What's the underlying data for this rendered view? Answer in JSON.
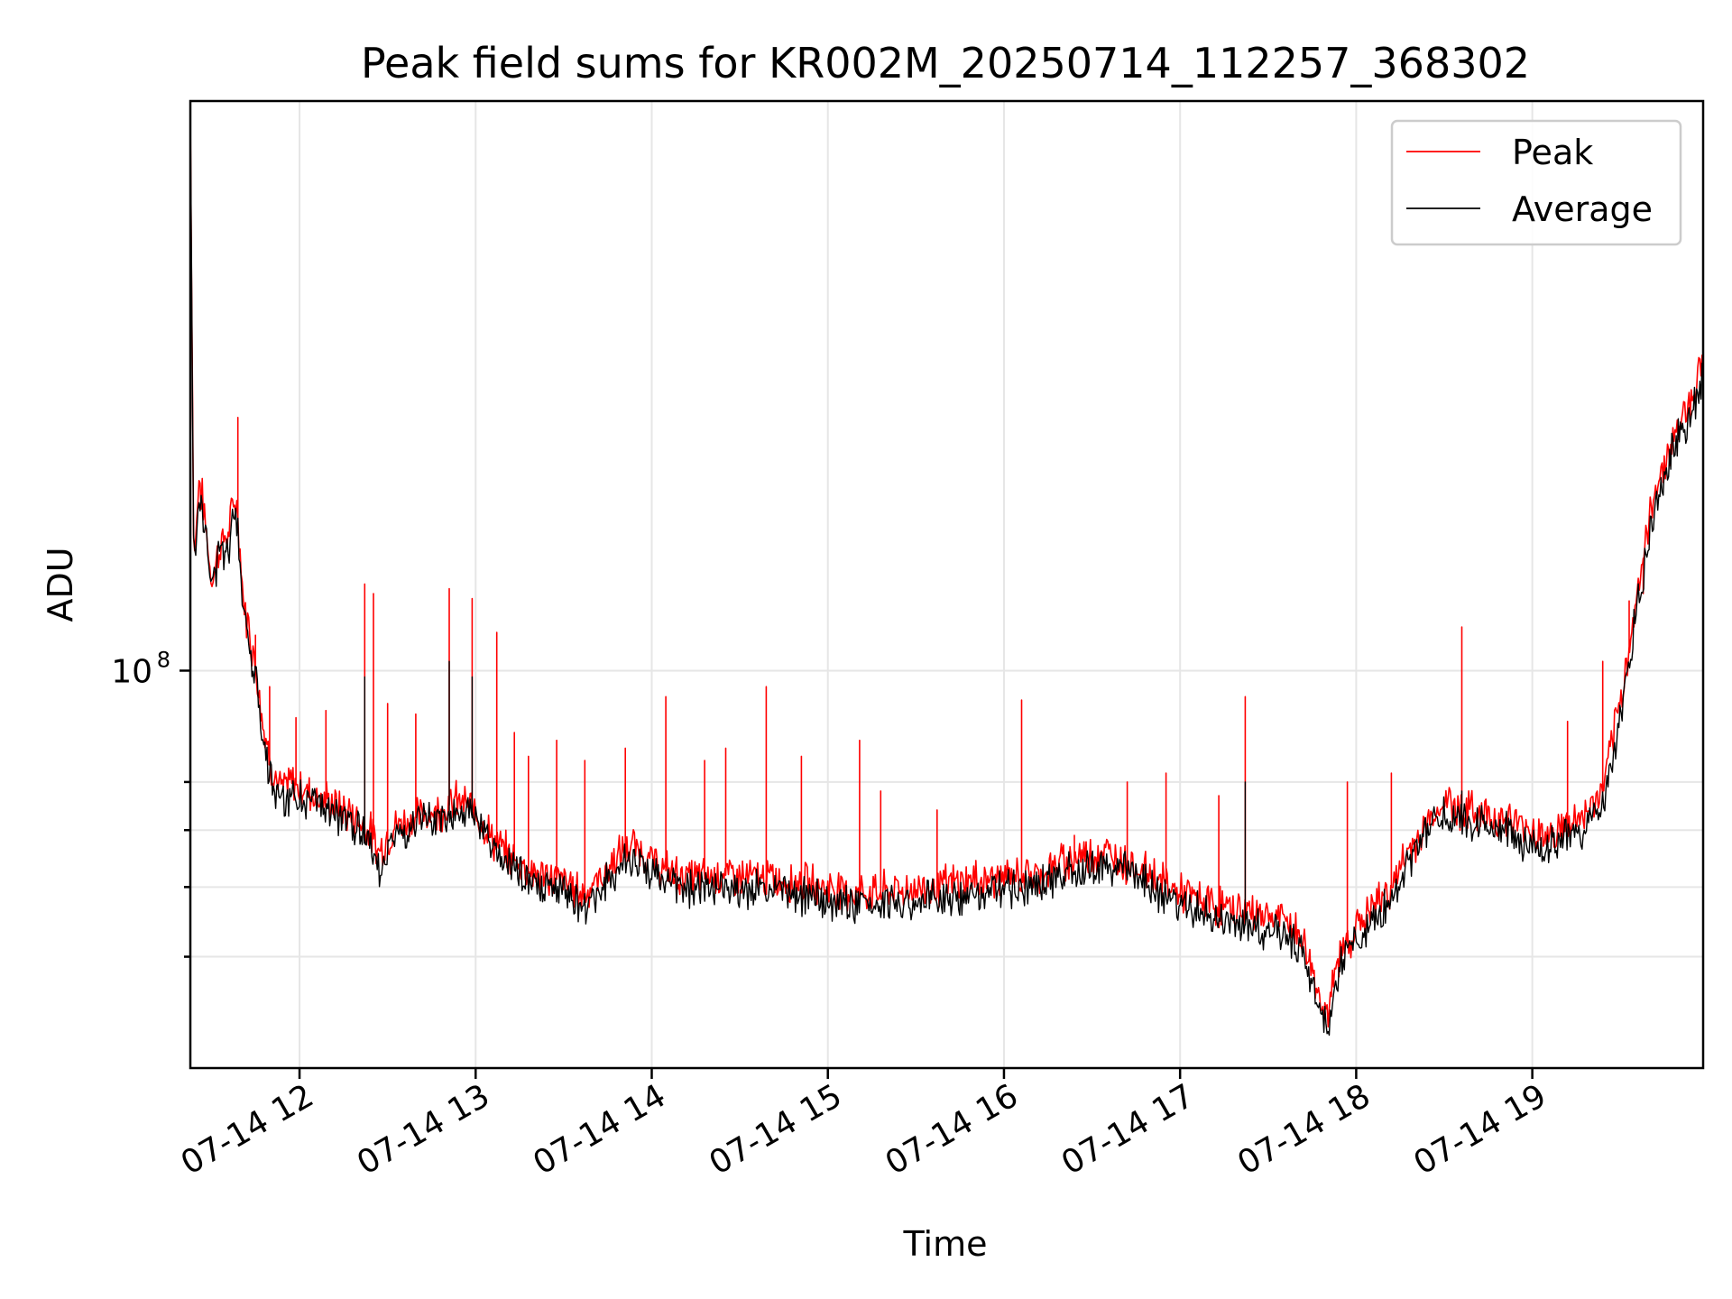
{
  "chart_data": {
    "type": "line",
    "title": "Peak field sums for KR002M_20250714_112257_368302",
    "xlabel": "Time",
    "ylabel": "ADU",
    "x_type": "time",
    "x_range_hours": [
      11.38,
      19.97
    ],
    "x_ticks": [
      {
        "hour": 12,
        "label": "07-14 12"
      },
      {
        "hour": 13,
        "label": "07-14 13"
      },
      {
        "hour": 14,
        "label": "07-14 14"
      },
      {
        "hour": 15,
        "label": "07-14 15"
      },
      {
        "hour": 16,
        "label": "07-14 16"
      },
      {
        "hour": 17,
        "label": "07-14 17"
      },
      {
        "hour": 18,
        "label": "07-14 18"
      },
      {
        "hour": 19,
        "label": "07-14 19"
      }
    ],
    "y_scale": "log",
    "ylim": [
      28000000,
      620000000
    ],
    "y_major_ticks": [
      {
        "value": 100000000,
        "base": "10",
        "exp": "8"
      }
    ],
    "y_minor_ticks": [
      40000000,
      50000000,
      60000000,
      70000000
    ],
    "grid": true,
    "legend": "top-right",
    "series": [
      {
        "name": "Peak",
        "color": "#ff0000",
        "points": [
          [
            11.38,
            600000000
          ],
          [
            11.4,
            140000000
          ],
          [
            11.43,
            185000000
          ],
          [
            11.46,
            165000000
          ],
          [
            11.5,
            133000000
          ],
          [
            11.55,
            150000000
          ],
          [
            11.6,
            155000000
          ],
          [
            11.63,
            175000000
          ],
          [
            11.65,
            164000000
          ],
          [
            11.68,
            125000000
          ],
          [
            11.72,
            112000000
          ],
          [
            11.76,
            98000000
          ],
          [
            11.8,
            82000000
          ],
          [
            11.85,
            72000000
          ],
          [
            11.9,
            68000000
          ],
          [
            11.95,
            70000000
          ],
          [
            12.05,
            68000000
          ],
          [
            12.2,
            65000000
          ],
          [
            12.3,
            63000000
          ],
          [
            12.4,
            60000000
          ],
          [
            12.45,
            56000000
          ],
          [
            12.55,
            61000000
          ],
          [
            12.7,
            63000000
          ],
          [
            12.8,
            64000000
          ],
          [
            12.9,
            66000000
          ],
          [
            13.0,
            64000000
          ],
          [
            13.1,
            58000000
          ],
          [
            13.2,
            55000000
          ],
          [
            13.35,
            52000000
          ],
          [
            13.5,
            51000000
          ],
          [
            13.6,
            49000000
          ],
          [
            13.7,
            51000000
          ],
          [
            13.8,
            55000000
          ],
          [
            13.9,
            57000000
          ],
          [
            14.05,
            53000000
          ],
          [
            14.2,
            51500000
          ],
          [
            14.4,
            52000000
          ],
          [
            14.6,
            51500000
          ],
          [
            14.8,
            51000000
          ],
          [
            15.0,
            50000000
          ],
          [
            15.2,
            49000000
          ],
          [
            15.4,
            49500000
          ],
          [
            15.6,
            50000000
          ],
          [
            15.8,
            51000000
          ],
          [
            16.0,
            51500000
          ],
          [
            16.2,
            52000000
          ],
          [
            16.4,
            55000000
          ],
          [
            16.55,
            56000000
          ],
          [
            16.7,
            54000000
          ],
          [
            16.85,
            52000000
          ],
          [
            17.0,
            49000000
          ],
          [
            17.15,
            47500000
          ],
          [
            17.3,
            46500000
          ],
          [
            17.45,
            46000000
          ],
          [
            17.6,
            45000000
          ],
          [
            17.7,
            42000000
          ],
          [
            17.78,
            36000000
          ],
          [
            17.84,
            33000000
          ],
          [
            17.9,
            40000000
          ],
          [
            18.0,
            44000000
          ],
          [
            18.1,
            47000000
          ],
          [
            18.2,
            50000000
          ],
          [
            18.3,
            56000000
          ],
          [
            18.4,
            61000000
          ],
          [
            18.5,
            66000000
          ],
          [
            18.6,
            64000000
          ],
          [
            18.7,
            63500000
          ],
          [
            18.85,
            62000000
          ],
          [
            19.0,
            60000000
          ],
          [
            19.1,
            59000000
          ],
          [
            19.2,
            61000000
          ],
          [
            19.3,
            63000000
          ],
          [
            19.4,
            68000000
          ],
          [
            19.5,
            90000000
          ],
          [
            19.6,
            130000000
          ],
          [
            19.7,
            180000000
          ],
          [
            19.8,
            210000000
          ],
          [
            19.9,
            240000000
          ],
          [
            19.97,
            270000000
          ]
        ],
        "spikes": [
          [
            11.65,
            225000000
          ],
          [
            11.75,
            112000000
          ],
          [
            11.83,
            95000000
          ],
          [
            11.98,
            86000000
          ],
          [
            12.15,
            88000000
          ],
          [
            12.37,
            132000000
          ],
          [
            12.42,
            128000000
          ],
          [
            12.5,
            90000000
          ],
          [
            12.66,
            87000000
          ],
          [
            12.85,
            130000000
          ],
          [
            12.98,
            126000000
          ],
          [
            13.12,
            113000000
          ],
          [
            13.22,
            82000000
          ],
          [
            13.3,
            76000000
          ],
          [
            13.46,
            80000000
          ],
          [
            13.62,
            75000000
          ],
          [
            13.85,
            78000000
          ],
          [
            14.08,
            92000000
          ],
          [
            14.3,
            75000000
          ],
          [
            14.42,
            78000000
          ],
          [
            14.65,
            95000000
          ],
          [
            14.85,
            76000000
          ],
          [
            15.18,
            80000000
          ],
          [
            15.3,
            68000000
          ],
          [
            15.62,
            64000000
          ],
          [
            16.1,
            91000000
          ],
          [
            16.4,
            59000000
          ],
          [
            16.7,
            70000000
          ],
          [
            16.92,
            72000000
          ],
          [
            17.22,
            67000000
          ],
          [
            17.37,
            92000000
          ],
          [
            17.95,
            70000000
          ],
          [
            18.2,
            72000000
          ],
          [
            18.6,
            115000000
          ],
          [
            19.2,
            85000000
          ],
          [
            19.4,
            103000000
          ],
          [
            19.55,
            125000000
          ],
          [
            19.63,
            128000000
          ]
        ]
      },
      {
        "name": "Average",
        "color": "#000000",
        "points": [
          [
            11.38,
            600000000
          ],
          [
            11.4,
            135000000
          ],
          [
            11.43,
            180000000
          ],
          [
            11.46,
            160000000
          ],
          [
            11.5,
            130000000
          ],
          [
            11.55,
            145000000
          ],
          [
            11.6,
            150000000
          ],
          [
            11.63,
            170000000
          ],
          [
            11.65,
            160000000
          ],
          [
            11.68,
            122000000
          ],
          [
            11.72,
            108000000
          ],
          [
            11.76,
            95000000
          ],
          [
            11.8,
            79000000
          ],
          [
            11.85,
            69000000
          ],
          [
            11.9,
            65000000
          ],
          [
            11.95,
            67000000
          ],
          [
            12.05,
            66000000
          ],
          [
            12.2,
            62500000
          ],
          [
            12.3,
            61000000
          ],
          [
            12.4,
            58000000
          ],
          [
            12.45,
            53500000
          ],
          [
            12.55,
            59000000
          ],
          [
            12.7,
            61000000
          ],
          [
            12.8,
            62000000
          ],
          [
            12.9,
            64000000
          ],
          [
            13.0,
            62000000
          ],
          [
            13.1,
            56000000
          ],
          [
            13.2,
            53000000
          ],
          [
            13.35,
            50000000
          ],
          [
            13.5,
            49000000
          ],
          [
            13.6,
            47000000
          ],
          [
            13.7,
            49000000
          ],
          [
            13.8,
            53000000
          ],
          [
            13.9,
            55000000
          ],
          [
            14.05,
            51000000
          ],
          [
            14.2,
            49500000
          ],
          [
            14.4,
            50000000
          ],
          [
            14.6,
            49500000
          ],
          [
            14.8,
            49000000
          ],
          [
            15.0,
            48000000
          ],
          [
            15.2,
            47000000
          ],
          [
            15.4,
            47500000
          ],
          [
            15.6,
            48000000
          ],
          [
            15.8,
            49000000
          ],
          [
            16.0,
            49500000
          ],
          [
            16.2,
            50000000
          ],
          [
            16.4,
            53000000
          ],
          [
            16.55,
            54000000
          ],
          [
            16.7,
            52000000
          ],
          [
            16.85,
            50000000
          ],
          [
            17.0,
            47000000
          ],
          [
            17.15,
            45500000
          ],
          [
            17.3,
            44500000
          ],
          [
            17.45,
            44000000
          ],
          [
            17.6,
            43000000
          ],
          [
            17.7,
            40000000
          ],
          [
            17.78,
            34500000
          ],
          [
            17.84,
            31500000
          ],
          [
            17.9,
            38500000
          ],
          [
            18.0,
            42000000
          ],
          [
            18.1,
            45000000
          ],
          [
            18.2,
            48000000
          ],
          [
            18.3,
            54000000
          ],
          [
            18.4,
            59000000
          ],
          [
            18.5,
            63000000
          ],
          [
            18.6,
            61500000
          ],
          [
            18.7,
            61000000
          ],
          [
            18.85,
            59500000
          ],
          [
            19.0,
            57500000
          ],
          [
            19.1,
            56500000
          ],
          [
            19.2,
            58500000
          ],
          [
            19.3,
            60500000
          ],
          [
            19.4,
            65000000
          ],
          [
            19.5,
            86000000
          ],
          [
            19.6,
            125000000
          ],
          [
            19.7,
            172000000
          ],
          [
            19.8,
            202000000
          ],
          [
            19.9,
            230000000
          ],
          [
            19.97,
            260000000
          ]
        ],
        "spikes": [
          [
            12.37,
            98000000
          ],
          [
            12.85,
            103000000
          ],
          [
            12.98,
            98000000
          ],
          [
            17.37,
            70000000
          ],
          [
            18.6,
            68000000
          ]
        ]
      }
    ]
  }
}
